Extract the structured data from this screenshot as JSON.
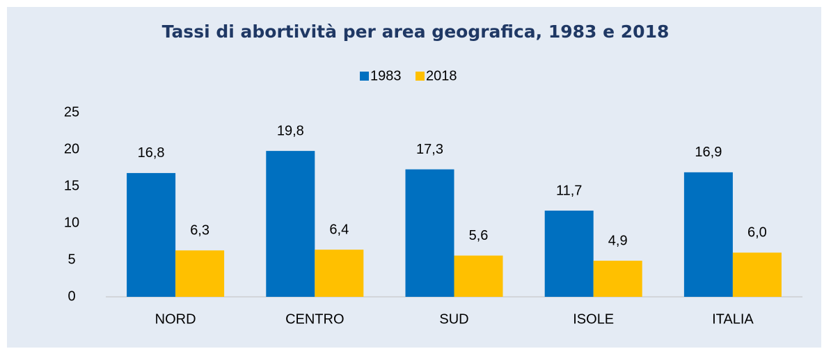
{
  "chart_data": {
    "type": "bar",
    "title": "Tassi di abortività per area geografica, 1983 e 2018",
    "categories": [
      "NORD",
      "CENTRO",
      "SUD",
      "ISOLE",
      "ITALIA"
    ],
    "series": [
      {
        "name": "1983",
        "color": "#0070c0",
        "values": [
          16.8,
          19.8,
          17.3,
          11.7,
          16.9
        ],
        "value_labels": [
          "16,8",
          "19,8",
          "17,3",
          "11,7",
          "16,9"
        ]
      },
      {
        "name": "2018",
        "color": "#ffc000",
        "values": [
          6.3,
          6.4,
          5.6,
          4.9,
          6.0
        ],
        "value_labels": [
          "6,3",
          "6,4",
          "5,6",
          "4,9",
          "6,0"
        ]
      }
    ],
    "ylim": [
      0,
      25
    ],
    "yticks": [
      0,
      5,
      10,
      15,
      20,
      25
    ],
    "grid": false,
    "legend": "top"
  }
}
